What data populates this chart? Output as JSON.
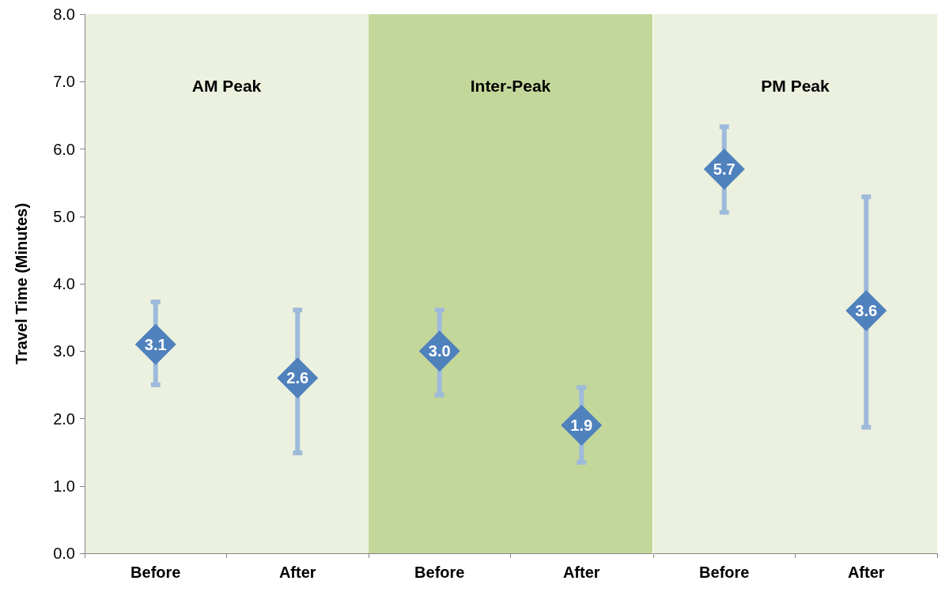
{
  "chart_data": [
    {
      "type": "scatter",
      "ylabel": "Travel Time (Minutes)",
      "categories": [
        "Before",
        "After"
      ],
      "ylim": [
        0,
        8
      ],
      "yticks": [
        {
          "value": 0,
          "label": "0.0"
        },
        {
          "value": 1,
          "label": "1.0"
        },
        {
          "value": 2,
          "label": "2.0"
        },
        {
          "value": 3,
          "label": "3.0"
        },
        {
          "value": 4,
          "label": "4.0"
        },
        {
          "value": 5,
          "label": "5.0"
        },
        {
          "value": 6,
          "label": "6.0"
        },
        {
          "value": 7,
          "label": "7.0"
        },
        {
          "value": 8,
          "label": "8.0"
        }
      ],
      "series": [
        {
          "color": "#4f81bd",
          "values": [
            3.1,
            2.6
          ],
          "value_labels": [
            "3.1",
            "2.6"
          ],
          "errors": [
            [
              2.5,
              3.73
            ],
            [
              1.49,
              3.61
            ]
          ]
        }
      ],
      "bands": [
        {
          "axis": "x",
          "from": "Before",
          "to": "After",
          "label": "AM Peak",
          "color": "#ebf1de"
        }
      ],
      "marker": "diamond",
      "grid": false
    },
    {
      "type": "scatter",
      "categories": [
        "Before",
        "After"
      ],
      "ylim": [
        0,
        8
      ],
      "tick_labels": "x",
      "series": [
        {
          "color": "#4f81bd",
          "values": [
            3.0,
            1.9
          ],
          "value_labels": [
            "3.0",
            "1.9"
          ],
          "errors": [
            [
              2.35,
              3.61
            ],
            [
              1.35,
              2.46
            ]
          ]
        }
      ],
      "bands": [
        {
          "axis": "x",
          "from": "Before",
          "to": "After",
          "label": "Inter-Peak",
          "color": "#c4d79b"
        }
      ],
      "marker": "diamond",
      "grid": false
    },
    {
      "type": "scatter",
      "categories": [
        "Before",
        "After"
      ],
      "ylim": [
        0,
        8
      ],
      "tick_labels": "x",
      "series": [
        {
          "color": "#4f81bd",
          "values": [
            5.7,
            3.6
          ],
          "value_labels": [
            "5.7",
            "3.6"
          ],
          "errors": [
            [
              5.06,
              6.33
            ],
            [
              1.87,
              5.29
            ]
          ]
        }
      ],
      "bands": [
        {
          "axis": "x",
          "from": "Before",
          "to": "After",
          "label": "PM Peak",
          "color": "#ebf1de"
        }
      ],
      "marker": "diamond",
      "grid": false
    }
  ]
}
